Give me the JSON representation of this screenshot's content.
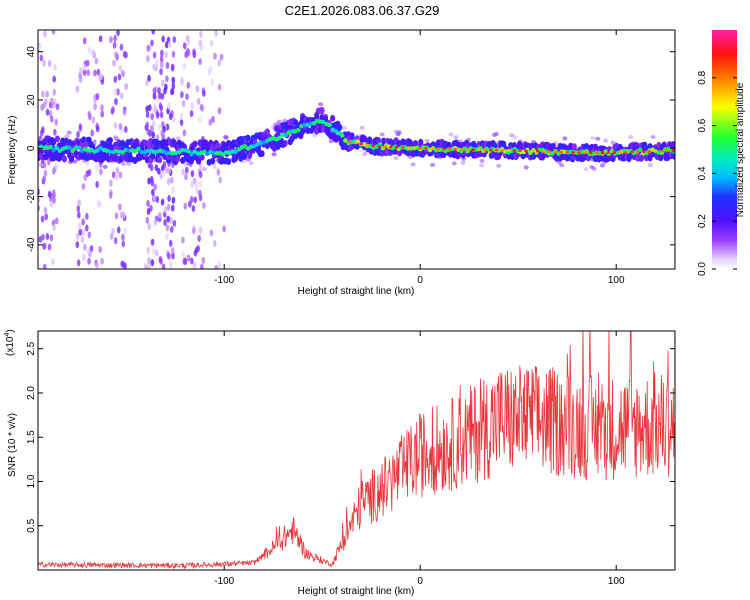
{
  "title": "C2E1.2026.083.06.37.G29",
  "chart_data": [
    {
      "type": "heatmap",
      "xlabel": "Height of straight line (km)",
      "ylabel": "Frequency (Hz)",
      "xlim": [
        -195,
        130
      ],
      "ylim": [
        -50,
        49
      ],
      "xticks": [
        -100,
        0,
        100
      ],
      "yticks": [
        -40,
        -20,
        0,
        20,
        40
      ],
      "ridge": {
        "description_points": [
          {
            "x": -195,
            "f": 0
          },
          {
            "x": -100,
            "f": -2
          },
          {
            "x": -80,
            "f": 2
          },
          {
            "x": -60,
            "f": 9
          },
          {
            "x": -50,
            "f": 12
          },
          {
            "x": -44,
            "f": 8
          },
          {
            "x": -38,
            "f": 3
          },
          {
            "x": -25,
            "f": 1
          },
          {
            "x": 0,
            "f": 0
          },
          {
            "x": 50,
            "f": -1
          },
          {
            "x": 90,
            "f": -2
          },
          {
            "x": 130,
            "f": -1
          }
        ]
      },
      "colorbar": {
        "label": "Normalized spectral amplitude",
        "ticks": [
          "0.0",
          "0.2",
          "0.4",
          "0.6",
          "0.8"
        ],
        "range": [
          0,
          1
        ]
      }
    },
    {
      "type": "line",
      "xlabel": "Height of straight line (km)",
      "ylabel": "SNR (10 * v/v)",
      "yscale_label": "(x10",
      "yscale_exp": "4",
      "xlim": [
        -195,
        130
      ],
      "ylim": [
        0,
        2.7
      ],
      "xticks": [
        -100,
        0,
        100
      ],
      "yticks": [
        0.5,
        1.0,
        1.5,
        2.0,
        2.5
      ],
      "ytick_labels": [
        "0.5",
        "1.0",
        "1.5",
        "2.0",
        "2.5"
      ],
      "series": [
        {
          "name": "SNR",
          "color": "#e8363a",
          "envelope": [
            {
              "x": -195,
              "y": 0.06
            },
            {
              "x": -120,
              "y": 0.05
            },
            {
              "x": -85,
              "y": 0.08
            },
            {
              "x": -75,
              "y": 0.25
            },
            {
              "x": -65,
              "y": 0.45
            },
            {
              "x": -58,
              "y": 0.18
            },
            {
              "x": -45,
              "y": 0.06
            },
            {
              "x": -38,
              "y": 0.4
            },
            {
              "x": -30,
              "y": 0.75
            },
            {
              "x": -20,
              "y": 0.9
            },
            {
              "x": -10,
              "y": 1.1
            },
            {
              "x": 0,
              "y": 1.3
            },
            {
              "x": 20,
              "y": 1.45
            },
            {
              "x": 40,
              "y": 1.7
            },
            {
              "x": 60,
              "y": 1.7
            },
            {
              "x": 90,
              "y": 1.6
            },
            {
              "x": 130,
              "y": 1.65
            }
          ]
        }
      ]
    }
  ]
}
